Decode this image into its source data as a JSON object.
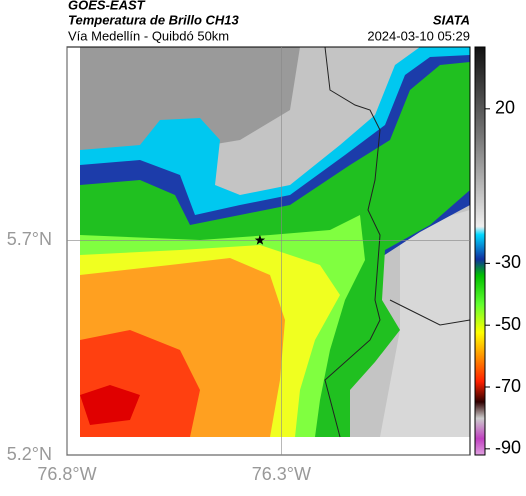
{
  "header": {
    "source": "GOES-EAST",
    "title": "Temperatura de Brillo CH13",
    "brand": "SIATA",
    "subtitle": "Vía Medellín - Quibdó 50km",
    "datetime": "2024-03-10 05:29"
  },
  "map": {
    "xlim": [
      -76.8,
      -75.86
    ],
    "ylim": [
      5.2,
      6.15
    ],
    "xticks": [
      {
        "value": -76.8,
        "label": "76.8°W"
      },
      {
        "value": -76.3,
        "label": "76.3°W"
      }
    ],
    "yticks": [
      {
        "value": 5.2,
        "label": "5.2°N"
      },
      {
        "value": 5.7,
        "label": "5.7°N"
      }
    ],
    "marker": {
      "lon": -76.35,
      "lat": 5.7
    }
  },
  "colorbar": {
    "lim": [
      -92,
      40
    ],
    "ticks": [
      20,
      -30,
      -50,
      -70,
      -90
    ]
  }
}
